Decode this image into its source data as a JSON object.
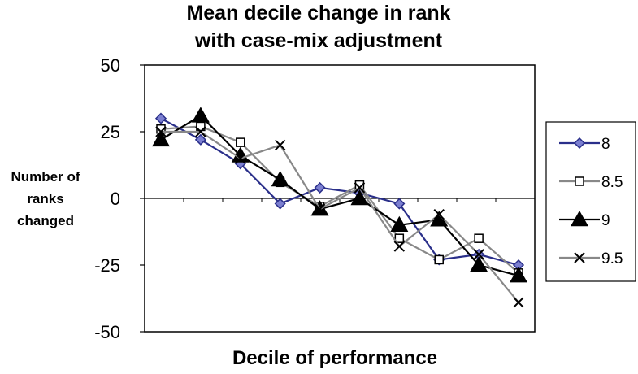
{
  "chart_data": {
    "type": "line",
    "title": [
      "Mean decile change in rank",
      "with case-mix adjustment"
    ],
    "xlabel": "Decile of performance",
    "ylabel": [
      "Number of",
      "ranks",
      "changed"
    ],
    "ylim": [
      -50,
      50
    ],
    "yticks": [
      50,
      25,
      0,
      -25,
      -50
    ],
    "ytick_labels": [
      "50",
      "25",
      "0",
      "-25",
      "-50"
    ],
    "x": [
      1,
      2,
      3,
      4,
      5,
      6,
      7,
      8,
      9,
      10
    ],
    "grid": false,
    "legend_position": "right",
    "series": [
      {
        "name": "8",
        "color": "#2a2f8a",
        "marker": "diamond",
        "values": [
          30,
          22,
          13,
          -2,
          4,
          2,
          -2,
          -23,
          -21,
          -25
        ]
      },
      {
        "name": "8.5",
        "color": "#888888",
        "marker": "square",
        "values": [
          26,
          27,
          21,
          6,
          -3,
          5,
          -15,
          -23,
          -15,
          -28
        ]
      },
      {
        "name": "9",
        "color": "#000000",
        "marker": "triangle",
        "values": [
          22,
          31,
          16,
          7,
          -4,
          0,
          -10,
          -8,
          -25,
          -29
        ]
      },
      {
        "name": "9.5",
        "color": "#888888",
        "marker": "x",
        "values": [
          25,
          25,
          15,
          20,
          -4,
          4,
          -18,
          -6,
          -21,
          -39
        ]
      }
    ]
  }
}
